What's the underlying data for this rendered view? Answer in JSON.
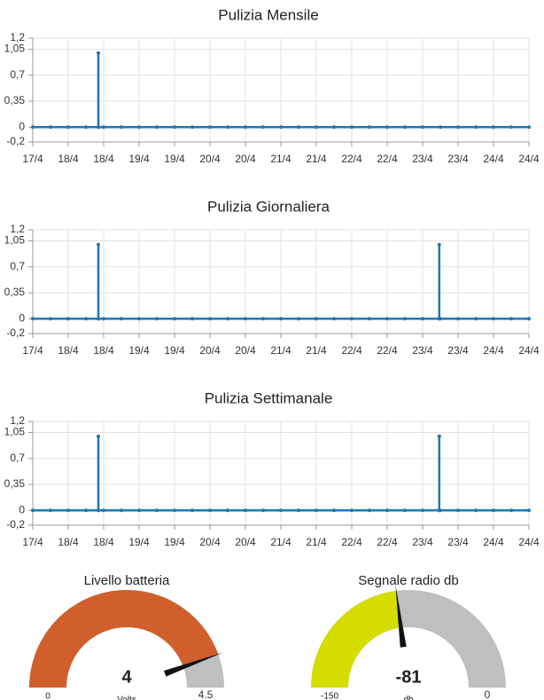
{
  "chart_data": [
    {
      "type": "line",
      "title": "Pulizia Mensile",
      "color": "#1f77b4",
      "grid": true,
      "x": [
        0,
        0.5,
        1,
        1.5,
        1.85,
        1.85,
        1.85,
        2,
        2.5,
        3,
        3.5,
        4,
        4.5,
        5,
        5.5,
        6,
        6.5,
        7,
        7.5,
        8,
        8.5,
        9,
        9.5,
        10,
        10.5,
        11,
        11.5,
        12,
        12.5,
        13,
        13.5,
        14
      ],
      "values": [
        0,
        0,
        0,
        0,
        0,
        1,
        0,
        0,
        0,
        0,
        0,
        0,
        0,
        0,
        0,
        0,
        0,
        0,
        0,
        0,
        0,
        0,
        0,
        0,
        0,
        0,
        0,
        0,
        0,
        0,
        0,
        0
      ],
      "xlim": [
        0,
        14
      ],
      "xticks": [
        {
          "value": 0,
          "label": "17/4"
        },
        {
          "value": 1,
          "label": "18/4"
        },
        {
          "value": 2,
          "label": "18/4"
        },
        {
          "value": 3,
          "label": "19/4"
        },
        {
          "value": 4,
          "label": "19/4"
        },
        {
          "value": 5,
          "label": "20/4"
        },
        {
          "value": 6,
          "label": "20/4"
        },
        {
          "value": 7,
          "label": "21/4"
        },
        {
          "value": 8,
          "label": "21/4"
        },
        {
          "value": 9,
          "label": "22/4"
        },
        {
          "value": 10,
          "label": "22/4"
        },
        {
          "value": 11,
          "label": "23/4"
        },
        {
          "value": 12,
          "label": "23/4"
        },
        {
          "value": 13,
          "label": "24/4"
        },
        {
          "value": 14,
          "label": "24/4"
        }
      ],
      "ylim": [
        -0.2,
        1.2
      ],
      "yticks": [
        {
          "value": 1.2,
          "label": "1,2"
        },
        {
          "value": 1.05,
          "label": "1,05"
        },
        {
          "value": 0.7,
          "label": "0,7"
        },
        {
          "value": 0.35,
          "label": "0,35"
        },
        0,
        {
          "value": -0.2,
          "label": "-0,2"
        }
      ]
    },
    {
      "type": "line",
      "title": "Pulizia Giornaliera",
      "color": "#1f77b4",
      "grid": true,
      "x": [
        0,
        0.5,
        1,
        1.5,
        1.85,
        1.85,
        1.85,
        2,
        2.5,
        3,
        3.5,
        4,
        4.5,
        5,
        5.5,
        6,
        6.5,
        7,
        7.5,
        8,
        8.5,
        9,
        9.5,
        10,
        10.5,
        11,
        11.47,
        11.47,
        11.47,
        11.5,
        12,
        12.5,
        13,
        13.5,
        14
      ],
      "values": [
        0,
        0,
        0,
        0,
        0,
        1,
        0,
        0,
        0,
        0,
        0,
        0,
        0,
        0,
        0,
        0,
        0,
        0,
        0,
        0,
        0,
        0,
        0,
        0,
        0,
        0,
        0,
        1,
        0,
        0,
        0,
        0,
        0,
        0,
        0
      ],
      "xlim": [
        0,
        14
      ],
      "xticks": [
        {
          "value": 0,
          "label": "17/4"
        },
        {
          "value": 1,
          "label": "18/4"
        },
        {
          "value": 2,
          "label": "18/4"
        },
        {
          "value": 3,
          "label": "19/4"
        },
        {
          "value": 4,
          "label": "19/4"
        },
        {
          "value": 5,
          "label": "20/4"
        },
        {
          "value": 6,
          "label": "20/4"
        },
        {
          "value": 7,
          "label": "21/4"
        },
        {
          "value": 8,
          "label": "21/4"
        },
        {
          "value": 9,
          "label": "22/4"
        },
        {
          "value": 10,
          "label": "22/4"
        },
        {
          "value": 11,
          "label": "23/4"
        },
        {
          "value": 12,
          "label": "23/4"
        },
        {
          "value": 13,
          "label": "24/4"
        },
        {
          "value": 14,
          "label": "24/4"
        }
      ],
      "ylim": [
        -0.2,
        1.2
      ],
      "yticks": [
        {
          "value": 1.2,
          "label": "1,2"
        },
        {
          "value": 1.05,
          "label": "1,05"
        },
        {
          "value": 0.7,
          "label": "0,7"
        },
        {
          "value": 0.35,
          "label": "0,35"
        },
        0,
        {
          "value": -0.2,
          "label": "-0,2"
        }
      ]
    },
    {
      "type": "line",
      "title": "Pulizia Settimanale",
      "color": "#1f77b4",
      "grid": true,
      "x": [
        0,
        0.5,
        1,
        1.5,
        1.85,
        1.85,
        1.85,
        2,
        2.5,
        3,
        3.5,
        4,
        4.5,
        5,
        5.5,
        6,
        6.5,
        7,
        7.5,
        8,
        8.5,
        9,
        9.5,
        10,
        10.5,
        11,
        11.47,
        11.47,
        11.47,
        11.5,
        12,
        12.5,
        13,
        13.5,
        14
      ],
      "values": [
        0,
        0,
        0,
        0,
        0,
        1,
        0,
        0,
        0,
        0,
        0,
        0,
        0,
        0,
        0,
        0,
        0,
        0,
        0,
        0,
        0,
        0,
        0,
        0,
        0,
        0,
        0,
        1,
        0,
        0,
        0,
        0,
        0,
        0,
        0
      ],
      "xlim": [
        0,
        14
      ],
      "xticks": [
        {
          "value": 0,
          "label": "17/4"
        },
        {
          "value": 1,
          "label": "18/4"
        },
        {
          "value": 2,
          "label": "18/4"
        },
        {
          "value": 3,
          "label": "19/4"
        },
        {
          "value": 4,
          "label": "19/4"
        },
        {
          "value": 5,
          "label": "20/4"
        },
        {
          "value": 6,
          "label": "20/4"
        },
        {
          "value": 7,
          "label": "21/4"
        },
        {
          "value": 8,
          "label": "21/4"
        },
        {
          "value": 9,
          "label": "22/4"
        },
        {
          "value": 10,
          "label": "22/4"
        },
        {
          "value": 11,
          "label": "23/4"
        },
        {
          "value": 12,
          "label": "23/4"
        },
        {
          "value": 13,
          "label": "24/4"
        },
        {
          "value": 14,
          "label": "24/4"
        }
      ],
      "ylim": [
        -0.2,
        1.2
      ],
      "yticks": [
        {
          "value": 1.2,
          "label": "1,2"
        },
        {
          "value": 1.05,
          "label": "1,05"
        },
        {
          "value": 0.7,
          "label": "0,7"
        },
        {
          "value": 0.35,
          "label": "0,35"
        },
        0,
        {
          "value": -0.2,
          "label": "-0,2"
        }
      ]
    },
    {
      "type": "gauge",
      "title": "Livello batteria",
      "value": 4,
      "min": 0,
      "max": 4.5,
      "units": "Volts",
      "color": "#d05f2b"
    },
    {
      "type": "gauge",
      "title": "Segnale radio db",
      "value": -81,
      "min": -150,
      "max": 0,
      "units": "db",
      "color": "#d4dc00"
    }
  ]
}
